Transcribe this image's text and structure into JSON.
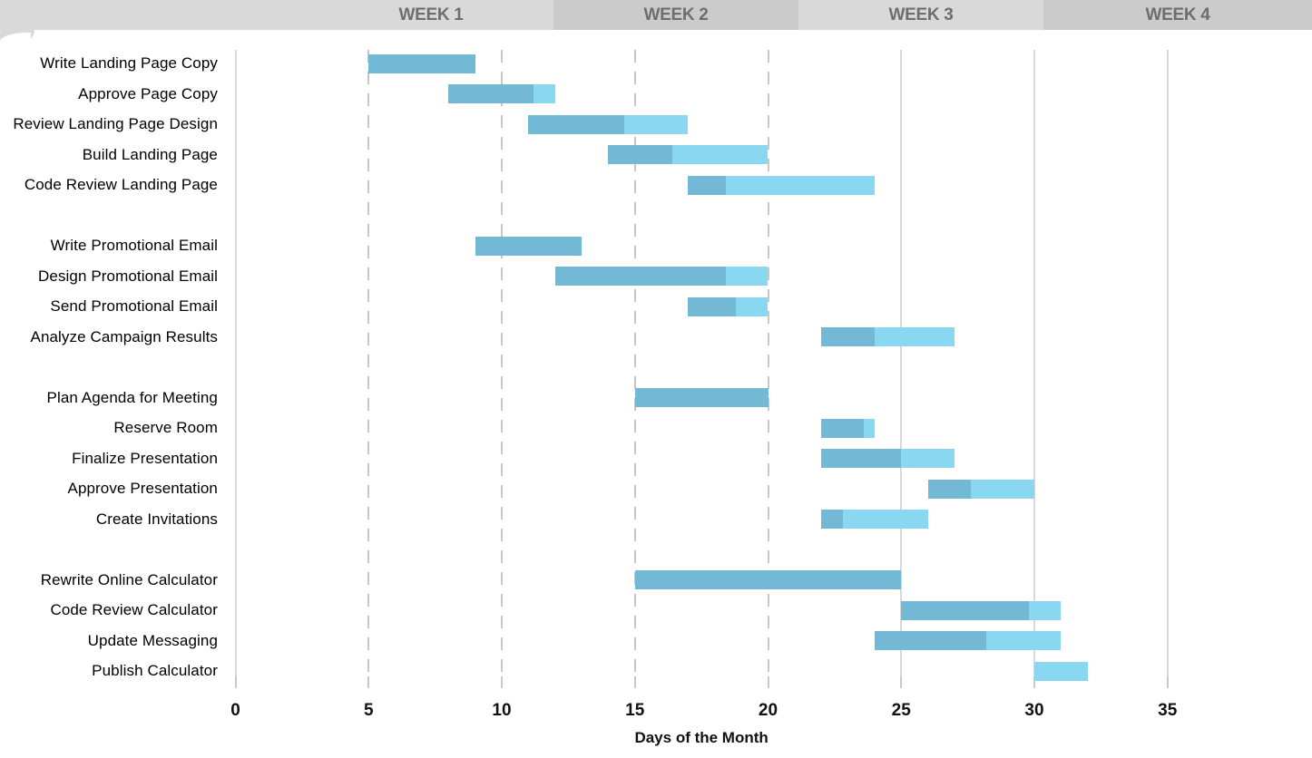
{
  "header": {
    "weeks": [
      {
        "label": "WEEK 1"
      },
      {
        "label": "WEEK 2"
      },
      {
        "label": "WEEK 3"
      },
      {
        "label": "WEEK 4"
      }
    ]
  },
  "colors": {
    "header_light": "#d9d9d9",
    "header_dark": "#cbcbcb",
    "week_label_text": "#6e6e6e",
    "bar_complete": "#73b8d4",
    "bar_remaining": "#8ad7f2",
    "gridline_dashed": "#c6c6c6",
    "gridline_solid": "#d8d8d8",
    "axis_line": "#d9d9d9",
    "tick": "#c9c9c9",
    "text": "#000000"
  },
  "chart_data": {
    "type": "bar",
    "subtype": "gantt",
    "title": "",
    "xlabel": "Days of the Month",
    "ylabel": "",
    "xlim": [
      0,
      40
    ],
    "x_ticks": [
      0,
      5,
      10,
      15,
      20,
      25,
      30,
      35
    ],
    "grid": {
      "dashed_at_days": [
        5,
        10,
        15,
        20
      ],
      "solid_at_days": [
        25,
        30,
        35
      ],
      "axis_at_day": 0
    },
    "legend": "none",
    "series_meaning": {
      "dark_segment": "completed portion",
      "light_segment": "remaining portion"
    },
    "tasks": [
      {
        "label": "Write Landing Page Copy",
        "group": 1,
        "start": 5,
        "end": 9,
        "percent_complete": 100
      },
      {
        "label": "Approve Page Copy",
        "group": 1,
        "start": 8,
        "end": 12,
        "percent_complete": 80
      },
      {
        "label": "Review Landing Page Design",
        "group": 1,
        "start": 11,
        "end": 17,
        "percent_complete": 60
      },
      {
        "label": "Build Landing Page",
        "group": 1,
        "start": 14,
        "end": 20,
        "percent_complete": 40
      },
      {
        "label": "Code Review Landing Page",
        "group": 1,
        "start": 17,
        "end": 24,
        "percent_complete": 20
      },
      {
        "label": "Write Promotional Email",
        "group": 2,
        "start": 9,
        "end": 13,
        "percent_complete": 100
      },
      {
        "label": "Design Promotional Email",
        "group": 2,
        "start": 12,
        "end": 20,
        "percent_complete": 80
      },
      {
        "label": "Send Promotional Email",
        "group": 2,
        "start": 17,
        "end": 20,
        "percent_complete": 60
      },
      {
        "label": "Analyze Campaign Results",
        "group": 2,
        "start": 22,
        "end": 27,
        "percent_complete": 40
      },
      {
        "label": "Plan Agenda for Meeting",
        "group": 3,
        "start": 15,
        "end": 20,
        "percent_complete": 100
      },
      {
        "label": "Reserve Room",
        "group": 3,
        "start": 22,
        "end": 24,
        "percent_complete": 80
      },
      {
        "label": "Finalize Presentation",
        "group": 3,
        "start": 22,
        "end": 27,
        "percent_complete": 60
      },
      {
        "label": "Approve Presentation",
        "group": 3,
        "start": 26,
        "end": 30,
        "percent_complete": 40
      },
      {
        "label": "Create Invitations",
        "group": 3,
        "start": 22,
        "end": 26,
        "percent_complete": 20
      },
      {
        "label": "Rewrite Online Calculator",
        "group": 4,
        "start": 15,
        "end": 25,
        "percent_complete": 100
      },
      {
        "label": "Code Review Calculator",
        "group": 4,
        "start": 25,
        "end": 31,
        "percent_complete": 80
      },
      {
        "label": "Update Messaging",
        "group": 4,
        "start": 24,
        "end": 31,
        "percent_complete": 60
      },
      {
        "label": "Publish Calculator",
        "group": 4,
        "start": 30,
        "end": 32,
        "percent_complete": 0
      }
    ]
  }
}
